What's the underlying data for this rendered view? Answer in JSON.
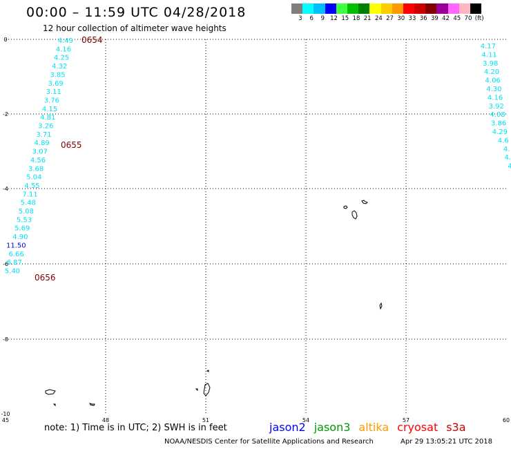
{
  "header": {
    "title": "00:00 – 11:59 UTC 04/28/2018",
    "subtitle": "12 hour collection of altimeter wave heights"
  },
  "colorbar": {
    "colors": [
      "#7f7f7f",
      "#00ffff",
      "#00bfff",
      "#0000ff",
      "#40ff40",
      "#00c000",
      "#008000",
      "#ffff00",
      "#ffcc00",
      "#ff9900",
      "#ff0000",
      "#cc0000",
      "#800000",
      "#990099",
      "#ff66ff",
      "#ffb6c1",
      "#000000"
    ],
    "labels": [
      "3",
      "6",
      "9",
      "12",
      "15",
      "18",
      "21",
      "24",
      "27",
      "30",
      "33",
      "36",
      "39",
      "42",
      "45",
      "70",
      "(ft)"
    ]
  },
  "map": {
    "x_ticks": [
      "45",
      "48",
      "51",
      "54",
      "57",
      "60"
    ],
    "y_ticks": [
      "0",
      "-2",
      "-4",
      "-6",
      "-8",
      "-10"
    ],
    "track_left": [
      "4.49",
      "4.16",
      "4.25",
      "4.32",
      "3.85",
      "3.69",
      "3.11",
      "3.76",
      "4.15",
      "4.81",
      "3.26",
      "3.71",
      "4.89",
      "3.07",
      "4.56",
      "3.68",
      "5.04",
      "4.55",
      "7.11",
      "5.48",
      "5.08",
      "5.53",
      "5.69",
      "4.90",
      "11.50",
      "6.66",
      "6.87",
      "5.40"
    ],
    "track_left_colors": [
      "cyan",
      "cyan",
      "cyan",
      "cyan",
      "cyan",
      "cyan",
      "cyan",
      "cyan",
      "cyan",
      "cyan",
      "cyan",
      "cyan",
      "cyan",
      "cyan",
      "cyan",
      "cyan",
      "cyan",
      "cyan",
      "cyan",
      "cyan",
      "cyan",
      "cyan",
      "cyan",
      "cyan",
      "blue",
      "cyan",
      "cyan",
      "cyan"
    ],
    "track_right": [
      "4.17",
      "4.11",
      "3.98",
      "4.20",
      "4.06",
      "4.30",
      "4.16",
      "3.92",
      "4.08",
      "3.86",
      "4.29",
      "4.6",
      "4.",
      "4.",
      "4"
    ],
    "time_labels": [
      "0654",
      "0655",
      "0656"
    ]
  },
  "footer": {
    "note": "note:  1) Time is in UTC;  2) SWH is in feet",
    "sources": [
      {
        "name": "jason2",
        "color": "#0000ff"
      },
      {
        "name": "jason3",
        "color": "#009900"
      },
      {
        "name": "altika",
        "color": "#ff9900"
      },
      {
        "name": "cryosat",
        "color": "#ff0000"
      },
      {
        "name": "s3a",
        "color": "#cc0000"
      }
    ],
    "credit": "NOAA/NESDIS Center for Satellite Applications and Research",
    "timestamp": "Apr 29 13:05:21 UTC 2018"
  }
}
